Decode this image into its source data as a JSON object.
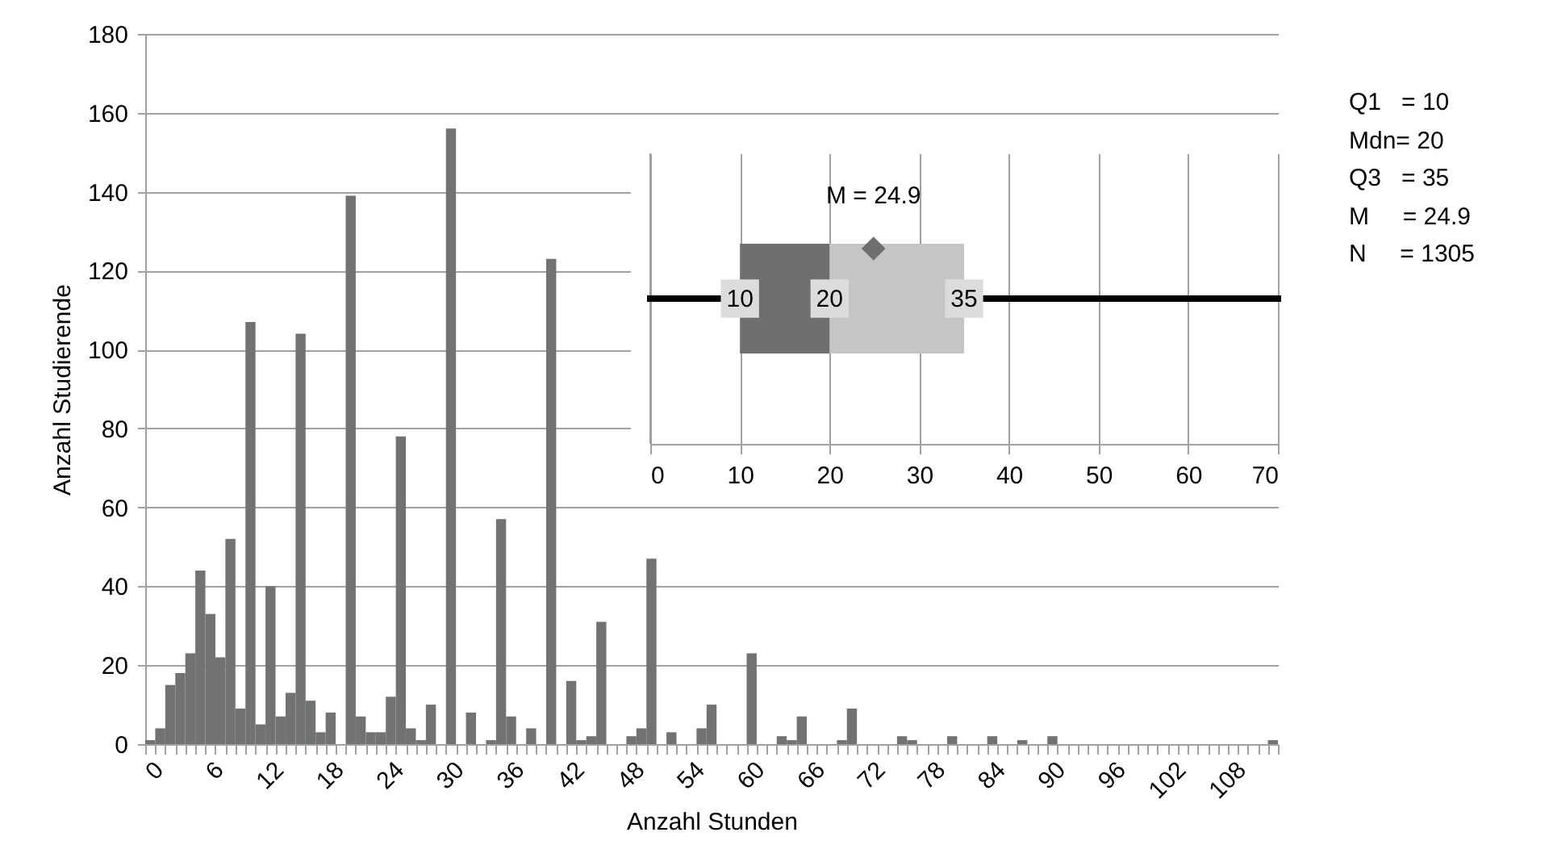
{
  "chart_data": [
    {
      "type": "bar",
      "xlabel": "Anzahl Stunden",
      "ylabel": "Anzahl Studierende",
      "categories": [
        "0",
        null,
        null,
        null,
        null,
        null,
        "6",
        null,
        null,
        null,
        null,
        null,
        "12",
        null,
        null,
        null,
        null,
        null,
        "18",
        null,
        null,
        null,
        null,
        null,
        "24",
        null,
        null,
        null,
        null,
        null,
        "30",
        null,
        null,
        null,
        null,
        null,
        "36",
        null,
        null,
        null,
        null,
        null,
        "42",
        null,
        null,
        null,
        null,
        null,
        "48",
        null,
        null,
        null,
        null,
        null,
        "54",
        null,
        null,
        null,
        null,
        null,
        "60",
        null,
        null,
        null,
        null,
        null,
        "66",
        null,
        null,
        null,
        null,
        null,
        "72",
        null,
        null,
        null,
        null,
        null,
        "78",
        null,
        null,
        null,
        null,
        null,
        "84",
        null,
        null,
        null,
        null,
        null,
        "90",
        null,
        null,
        null,
        null,
        null,
        "96",
        null,
        null,
        null,
        null,
        null,
        "102",
        null,
        null,
        null,
        null,
        null,
        "108",
        null,
        null,
        null,
        null
      ],
      "values": [
        1,
        4,
        15,
        18,
        23,
        44,
        33,
        22,
        52,
        9,
        107,
        5,
        40,
        7,
        13,
        104,
        11,
        3,
        8,
        0,
        139,
        7,
        3,
        3,
        12,
        78,
        4,
        1,
        10,
        0,
        156,
        0,
        8,
        0,
        1,
        57,
        7,
        0,
        4,
        0,
        123,
        0,
        16,
        1,
        2,
        31,
        0,
        0,
        2,
        4,
        47,
        0,
        3,
        0,
        0,
        4,
        10,
        0,
        0,
        0,
        23,
        0,
        0,
        2,
        1,
        7,
        0,
        0,
        0,
        1,
        9,
        0,
        0,
        0,
        0,
        2,
        1,
        0,
        0,
        0,
        2,
        0,
        0,
        0,
        2,
        0,
        0,
        1,
        0,
        0,
        2,
        0,
        0,
        0,
        0,
        0,
        0,
        0,
        0,
        0,
        0,
        0,
        0,
        0,
        0,
        0,
        0,
        0,
        0,
        0,
        0,
        0,
        1
      ],
      "color": "#717373",
      "ylim": [
        0,
        180
      ],
      "yticks": [
        0,
        20,
        40,
        60,
        80,
        100,
        120,
        140,
        160,
        180
      ],
      "grid": "y",
      "annotations": [
        "Q1   = 10",
        "Mdn= 20",
        "Q3   = 35",
        "M     = 24.9",
        "N     = 1305"
      ]
    },
    {
      "type": "box",
      "orientation": "horizontal",
      "categories": [
        null
      ],
      "boxes": [
        {
          "low": 0,
          "q1": 10,
          "median": 20,
          "q3": 35,
          "high": 70,
          "mean": 24.9
        }
      ],
      "color": "#6e706f",
      "marker": "diamond",
      "xlim": [
        0,
        70
      ],
      "xticks": [
        0,
        10,
        20,
        30,
        40,
        50,
        60,
        70
      ],
      "grid": "x",
      "tick_labels": "x",
      "annotations": [
        "M = 24.9",
        {
          "text": "10",
          "x": 10
        },
        {
          "text": "20",
          "x": 20
        },
        {
          "text": "35",
          "x": 35
        }
      ]
    }
  ]
}
